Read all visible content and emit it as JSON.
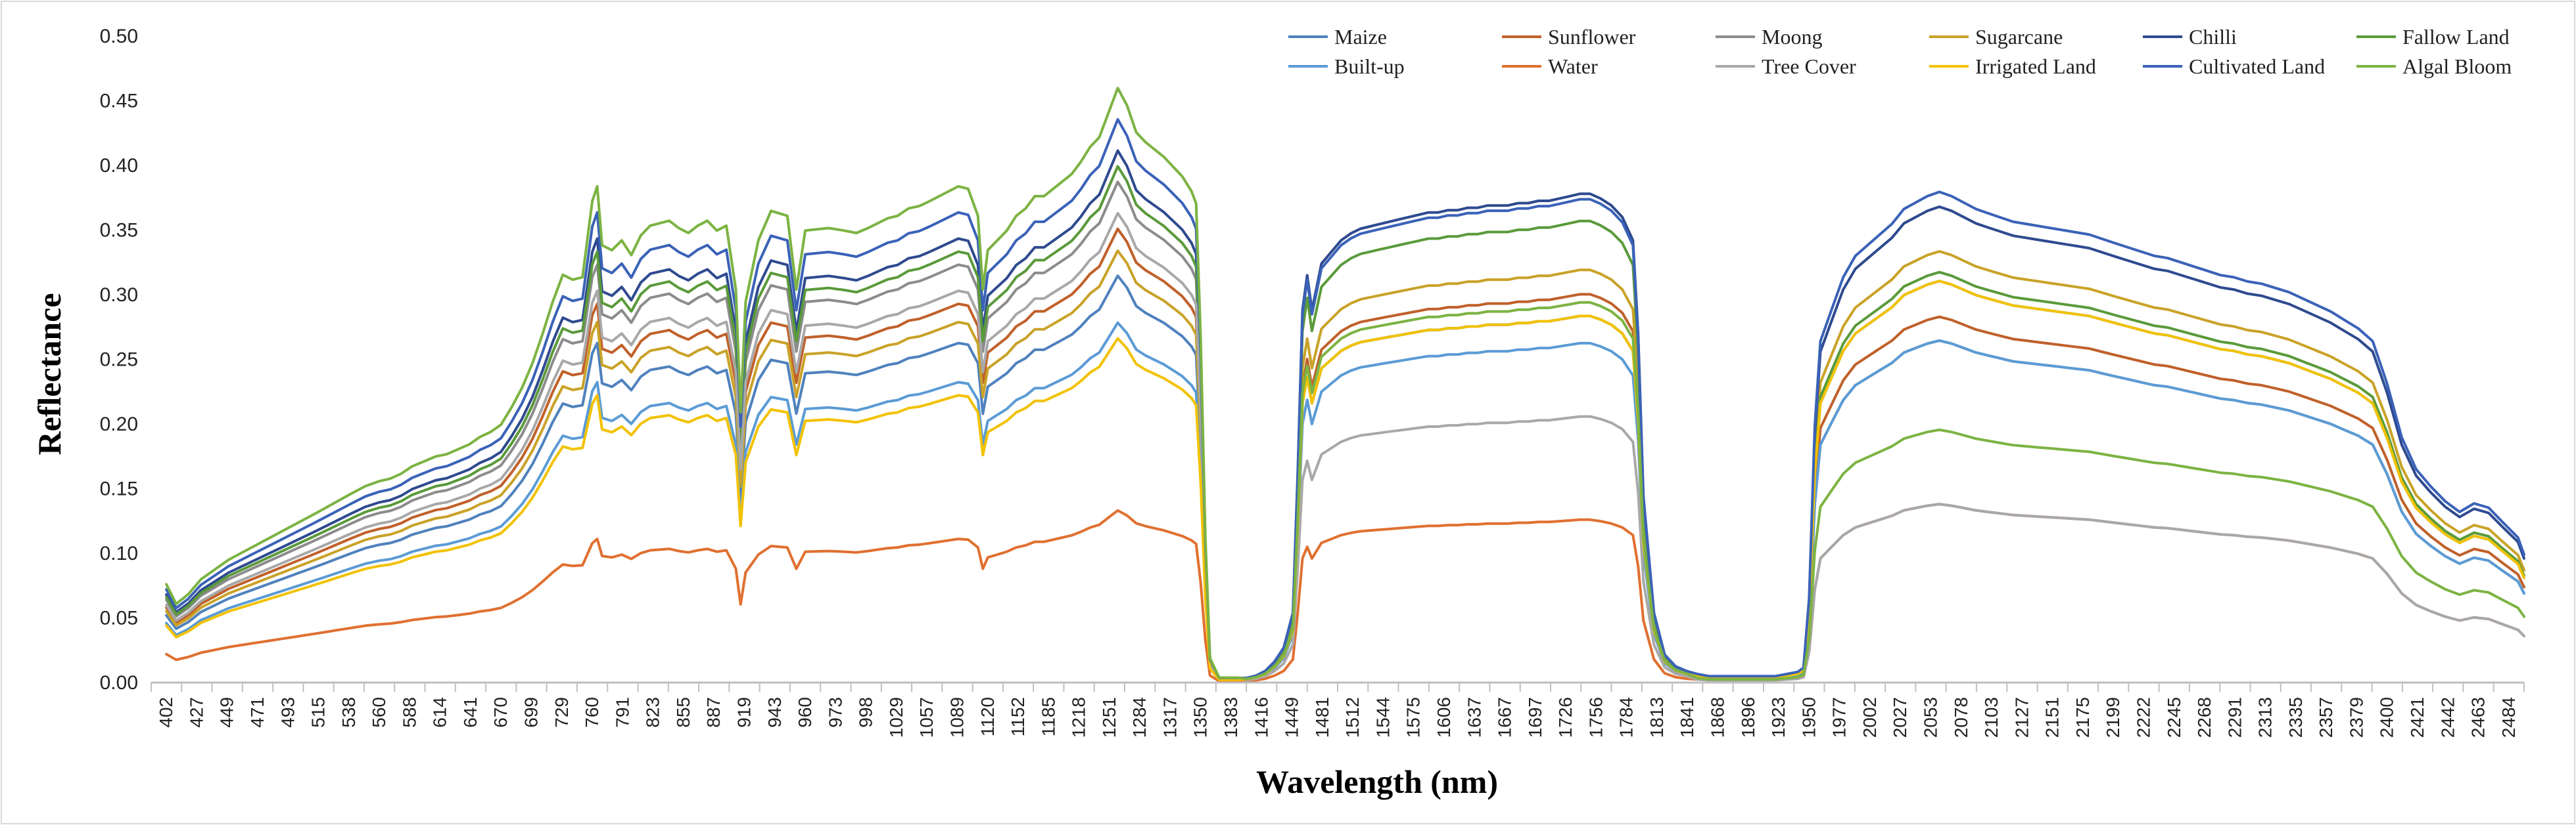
{
  "chart_data": {
    "type": "line",
    "title": "",
    "xlabel": "Wavelength (nm)",
    "ylabel": "Reflectance",
    "ylim": [
      0,
      0.5
    ],
    "yticks": [
      "0.00",
      "0.05",
      "0.10",
      "0.15",
      "0.20",
      "0.25",
      "0.30",
      "0.35",
      "0.40",
      "0.45",
      "0.50"
    ],
    "xlim": [
      402,
      2500
    ],
    "xticks": [
      402,
      427,
      449,
      471,
      493,
      515,
      538,
      560,
      588,
      614,
      641,
      670,
      699,
      729,
      760,
      791,
      823,
      855,
      887,
      919,
      943,
      960,
      973,
      998,
      1029,
      1057,
      1089,
      1120,
      1152,
      1185,
      1218,
      1251,
      1284,
      1317,
      1350,
      1383,
      1416,
      1449,
      1481,
      1512,
      1544,
      1575,
      1606,
      1637,
      1667,
      1697,
      1726,
      1756,
      1784,
      1813,
      1841,
      1868,
      1896,
      1923,
      1950,
      1977,
      2002,
      2027,
      2053,
      2078,
      2103,
      2127,
      2151,
      2175,
      2199,
      2222,
      2245,
      2268,
      2291,
      2313,
      2335,
      2357,
      2379,
      2400,
      2421,
      2442,
      2463,
      2484
    ],
    "legend_position": "top-right",
    "grid": false,
    "template": {
      "wl": [
        402,
        410,
        420,
        430,
        440,
        450,
        460,
        470,
        480,
        490,
        500,
        510,
        520,
        530,
        540,
        550,
        560,
        570,
        580,
        590,
        600,
        610,
        620,
        630,
        640,
        650,
        660,
        670,
        680,
        690,
        700,
        710,
        720,
        730,
        740,
        750,
        760,
        765,
        770,
        780,
        790,
        800,
        810,
        820,
        830,
        840,
        850,
        860,
        870,
        880,
        890,
        900,
        910,
        915,
        920,
        930,
        940,
        950,
        955,
        960,
        970,
        980,
        990,
        1000,
        1010,
        1020,
        1030,
        1040,
        1050,
        1060,
        1070,
        1080,
        1090,
        1100,
        1110,
        1115,
        1120,
        1130,
        1140,
        1150,
        1160,
        1170,
        1180,
        1190,
        1200,
        1210,
        1220,
        1230,
        1240,
        1250,
        1260,
        1270,
        1280,
        1290,
        1300,
        1310,
        1320,
        1330,
        1340,
        1345,
        1350,
        1355,
        1360,
        1370,
        1380,
        1390,
        1400,
        1410,
        1420,
        1430,
        1440,
        1450,
        1455,
        1460,
        1465,
        1470,
        1475,
        1480,
        1490,
        1500,
        1510,
        1520,
        1530,
        1540,
        1550,
        1560,
        1570,
        1580,
        1590,
        1600,
        1610,
        1620,
        1630,
        1640,
        1650,
        1660,
        1670,
        1680,
        1690,
        1700,
        1710,
        1720,
        1730,
        1740,
        1750,
        1760,
        1770,
        1780,
        1790,
        1795,
        1800,
        1810,
        1820,
        1830,
        1840,
        1850,
        1860,
        1870,
        1880,
        1890,
        1900,
        1910,
        1920,
        1930,
        1940,
        1945,
        1950,
        1955,
        1960,
        1970,
        1980,
        1990,
        2000,
        2010,
        2020,
        2030,
        2040,
        2050,
        2060,
        2070,
        2080,
        2090,
        2100,
        2110,
        2120,
        2130,
        2140,
        2150,
        2160,
        2170,
        2180,
        2190,
        2200,
        2210,
        2220,
        2230,
        2240,
        2250,
        2260,
        2270,
        2280,
        2290,
        2300,
        2310,
        2320,
        2330,
        2340,
        2350,
        2360,
        2370,
        2380,
        2390,
        2400,
        2410,
        2420,
        2430,
        2440,
        2450,
        2460,
        2470,
        2480,
        2490,
        2500
      ],
      "shape": [
        0.4,
        0.32,
        0.36,
        0.42,
        0.46,
        0.5,
        0.53,
        0.56,
        0.59,
        0.62,
        0.65,
        0.68,
        0.71,
        0.74,
        0.77,
        0.8,
        0.82,
        0.83,
        0.85,
        0.88,
        0.9,
        0.92,
        0.93,
        0.95,
        0.97,
        1.0,
        1.02,
        1.05,
        1.12,
        1.2,
        1.3,
        1.42,
        1.55,
        1.66,
        1.64,
        1.65,
        1.96,
        2.02,
        1.78,
        1.76,
        1.8,
        1.74,
        1.82,
        1.86,
        1.87,
        1.88,
        1.85,
        1.83,
        1.86,
        1.88,
        1.84,
        1.86,
        1.6,
        1.1,
        1.55,
        1.8,
        1.92,
        1.9,
        1.6,
        1.84,
        1.85,
        1.84,
        1.83,
        1.85,
        1.87,
        1.89,
        1.9,
        1.93,
        1.94,
        1.96,
        1.98,
        2.0,
        2.02,
        2.01,
        1.9,
        1.6,
        1.76,
        1.8,
        1.84,
        1.9,
        1.93,
        1.98,
        1.98,
        2.01,
        2.04,
        2.07,
        2.12,
        2.18,
        2.22,
        2.32,
        2.42,
        2.35,
        2.24,
        2.2,
        2.17,
        2.14,
        2.1,
        2.06,
        2.0,
        1.95,
        1.4,
        0.6,
        0.1,
        0.02,
        0.02,
        0.02,
        0.02,
        0.03,
        0.05,
        0.09,
        0.15,
        0.3,
        0.9,
        1.6,
        1.75,
        1.6,
        1.7,
        1.8,
        1.85,
        1.9,
        1.93,
        1.95,
        1.96,
        1.97,
        1.98,
        1.99,
        2.0,
        2.01,
        2.02,
        2.02,
        2.03,
        2.03,
        2.04,
        2.04,
        2.05,
        2.05,
        2.05,
        2.06,
        2.06,
        2.07,
        2.07,
        2.08,
        2.09,
        2.1,
        2.1,
        2.08,
        2.05,
        2.0,
        1.9,
        1.5,
        0.8,
        0.3,
        0.12,
        0.07,
        0.05,
        0.04,
        0.03,
        0.03,
        0.03,
        0.03,
        0.03,
        0.03,
        0.03,
        0.04,
        0.05,
        0.07,
        0.4,
        1.2,
        1.6,
        1.75,
        1.9,
        2.0,
        2.05,
        2.1,
        2.15,
        2.22,
        2.25,
        2.28,
        2.3,
        2.28,
        2.25,
        2.22,
        2.2,
        2.18,
        2.16,
        2.15,
        2.14,
        2.13,
        2.12,
        2.11,
        2.1,
        2.08,
        2.06,
        2.04,
        2.02,
        2.0,
        1.99,
        1.97,
        1.95,
        1.93,
        1.91,
        1.9,
        1.88,
        1.87,
        1.85,
        1.83,
        1.8,
        1.77,
        1.74,
        1.7,
        1.66,
        1.6,
        1.4,
        1.15,
        1.0,
        0.92,
        0.85,
        0.8,
        0.84,
        0.82,
        0.75,
        0.68,
        0.6,
        0.5,
        0.62,
        0.48,
        0.3,
        0.12
      ]
    },
    "series": [
      {
        "name": "Maize",
        "color": "#4f81bd",
        "scale": [
          0.13,
          0.135,
          0.135
        ]
      },
      {
        "name": "Sunflower",
        "color": "#c0602a",
        "scale": [
          0.145,
          0.143,
          0.123
        ]
      },
      {
        "name": "Moong",
        "color": "#8c8c8c",
        "scale": [
          0.16,
          0.135,
          0.115
        ]
      },
      {
        "name": "Sugarcane",
        "color": "#c9a227",
        "scale": [
          0.138,
          0.152,
          0.145
        ]
      },
      {
        "name": "Chilli",
        "color": "#2e4a8f",
        "scale": [
          0.17,
          0.18,
          0.16
        ]
      },
      {
        "name": "Fallow Land",
        "color": "#5a9a3a",
        "scale": [
          0.165,
          0.17,
          0.138
        ]
      },
      {
        "name": "Built-up",
        "color": "#5b9bd5",
        "scale": [
          0.115,
          0.125,
          0.115
        ]
      },
      {
        "name": "Water",
        "color": "#e07030",
        "scale": [
          0.055,
          0.06,
          0.06
        ]
      },
      {
        "name": "Tree Cover",
        "color": "#a8a8a8",
        "scale": [
          0.15,
          0.098,
          0.06
        ]
      },
      {
        "name": "Irrigated Land",
        "color": "#f2c200",
        "scale": [
          0.11,
          0.135,
          0.135
        ]
      },
      {
        "name": "Cultivated Land",
        "color": "#3a62b8",
        "scale": [
          0.18,
          0.178,
          0.165
        ]
      },
      {
        "name": "Algal Bloom",
        "color": "#7cb342",
        "scale": [
          0.19,
          0.14,
          0.085
        ]
      }
    ]
  }
}
